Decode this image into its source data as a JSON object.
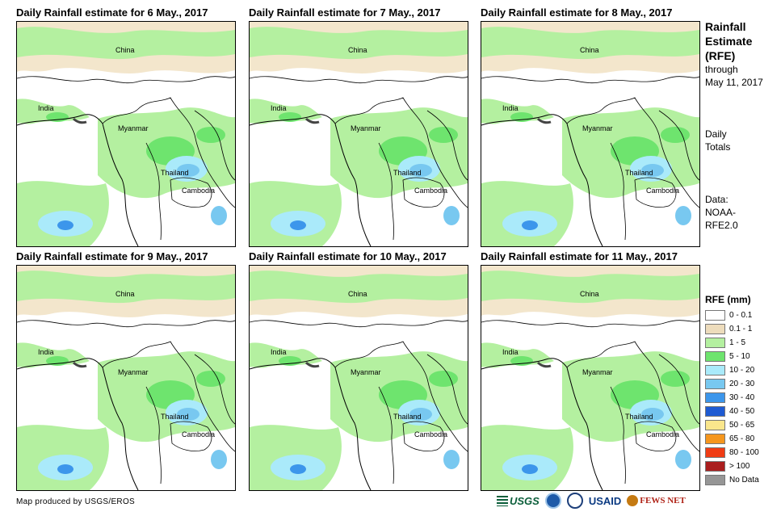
{
  "panels": [
    {
      "title": "Daily Rainfall estimate for 6 May., 2017"
    },
    {
      "title": "Daily Rainfall estimate for 7 May., 2017"
    },
    {
      "title": "Daily Rainfall estimate for 8 May., 2017"
    },
    {
      "title": "Daily Rainfall estimate for 9 May., 2017"
    },
    {
      "title": "Daily Rainfall estimate for 10 May., 2017"
    },
    {
      "title": "Daily Rainfall estimate for 11 May., 2017"
    }
  ],
  "map_labels": {
    "china": "China",
    "india": "India",
    "myanmar": "Myanmar",
    "thailand": "Thailand",
    "cambodia": "Cambodia"
  },
  "sidebar": {
    "title_line1": "Rainfall",
    "title_line2": "Estimate",
    "title_line3": "(RFE)",
    "through_label": "through",
    "through_date": "May 11, 2017",
    "totals_line1": "Daily",
    "totals_line2": "Totals",
    "data_line1": "Data:",
    "data_line2": "NOAA-",
    "data_line3": "RFE2.0"
  },
  "legend": {
    "title": "RFE (mm)",
    "items": [
      {
        "label": "0 - 0.1",
        "color": "#ffffff"
      },
      {
        "label": "0.1 - 1",
        "color": "#eddcbc"
      },
      {
        "label": "1 - 5",
        "color": "#b4f0a0"
      },
      {
        "label": "5 - 10",
        "color": "#6ee46e"
      },
      {
        "label": "10 - 20",
        "color": "#aaeafa"
      },
      {
        "label": "20 - 30",
        "color": "#78c8f0"
      },
      {
        "label": "30 - 40",
        "color": "#3c96eb"
      },
      {
        "label": "40 - 50",
        "color": "#1e5ad2"
      },
      {
        "label": "50 - 65",
        "color": "#fae68c"
      },
      {
        "label": "65 - 80",
        "color": "#f5961e"
      },
      {
        "label": "80 - 100",
        "color": "#f03c14"
      },
      {
        "label": "> 100",
        "color": "#aa1e1e"
      },
      {
        "label": "No Data",
        "color": "#969696"
      }
    ]
  },
  "footer": {
    "credit": "Map produced by USGS/EROS",
    "logo_usgs": "USGS",
    "logo_usaid": "USAID",
    "logo_fews": "FEWS NET"
  }
}
